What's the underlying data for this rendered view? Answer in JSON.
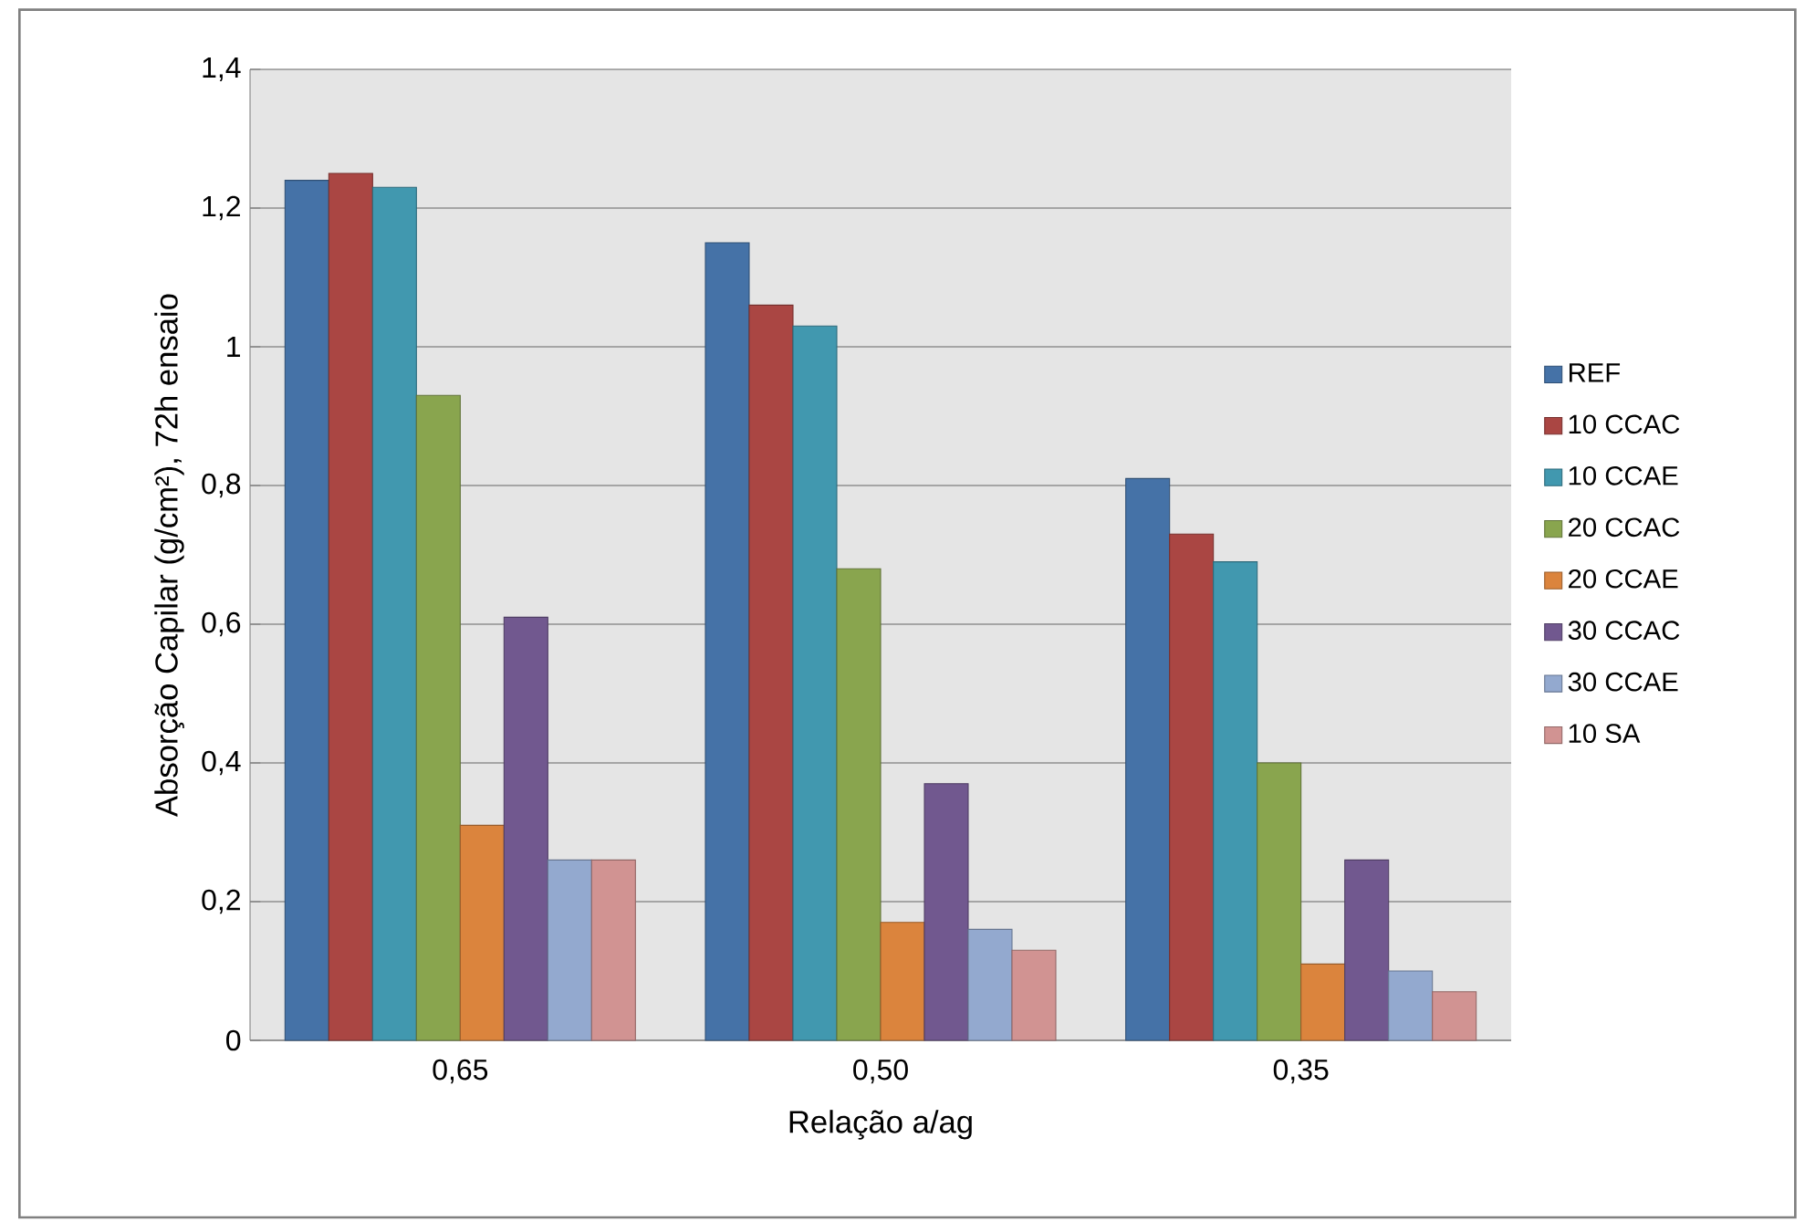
{
  "chart_data": {
    "type": "bar",
    "xlabel": "Relação a/ag",
    "ylabel": "Absorção Capilar (g/cm²), 72h ensaio",
    "categories": [
      "0,65",
      "0,50",
      "0,35"
    ],
    "series": [
      {
        "name": "REF",
        "color": "#4572a7",
        "values": [
          1.24,
          1.15,
          0.81
        ]
      },
      {
        "name": "10 CCAC",
        "color": "#aa4643",
        "values": [
          1.25,
          1.06,
          0.73
        ]
      },
      {
        "name": "10 CCAE",
        "color": "#4198af",
        "values": [
          1.23,
          1.03,
          0.69
        ]
      },
      {
        "name": "20 CCAC",
        "color": "#89a54e",
        "values": [
          0.93,
          0.68,
          0.4
        ]
      },
      {
        "name": "20 CCAE",
        "color": "#db843d",
        "values": [
          0.31,
          0.17,
          0.11
        ]
      },
      {
        "name": "30 CCAC",
        "color": "#71588f",
        "values": [
          0.61,
          0.37,
          0.26
        ]
      },
      {
        "name": "30 CCAE",
        "color": "#93a9cf",
        "values": [
          0.26,
          0.16,
          0.1
        ]
      },
      {
        "name": "10 SA",
        "color": "#d19392",
        "values": [
          0.26,
          0.13,
          0.07
        ]
      }
    ],
    "ylim": [
      0,
      1.4
    ],
    "yticks": [
      0,
      {
        "value": 0.2,
        "label": "0,2"
      },
      {
        "value": 0.4,
        "label": "0,4"
      },
      {
        "value": 0.6,
        "label": "0,6"
      },
      {
        "value": 0.8,
        "label": "0,8"
      },
      1,
      {
        "value": 1.2,
        "label": "1,2"
      },
      {
        "value": 1.4,
        "label": "1,4"
      }
    ],
    "grid": "y",
    "legend": "right"
  }
}
